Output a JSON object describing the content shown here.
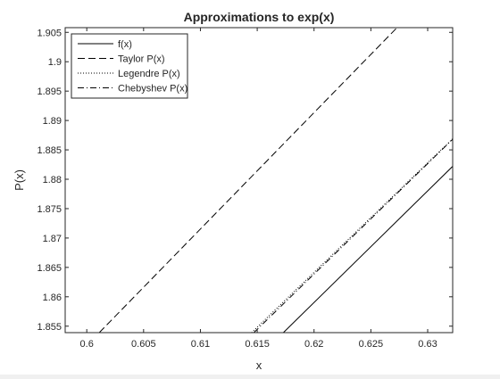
{
  "chart_data": {
    "type": "line",
    "title": "Approximations to exp(x)",
    "xlabel": "x",
    "ylabel": "P(x)",
    "xlim": [
      0.5981,
      0.6322
    ],
    "ylim": [
      1.8539,
      1.9058
    ],
    "xticks": [
      0.6,
      0.605,
      0.61,
      0.615,
      0.62,
      0.625,
      0.63
    ],
    "xtick_labels": [
      "0.6",
      "0.605",
      "0.61",
      "0.615",
      "0.62",
      "0.625",
      "0.63"
    ],
    "yticks": [
      1.855,
      1.86,
      1.865,
      1.87,
      1.875,
      1.88,
      1.885,
      1.89,
      1.895,
      1.9,
      1.905
    ],
    "ytick_labels": [
      "1.855",
      "1.86",
      "1.865",
      "1.87",
      "1.875",
      "1.88",
      "1.885",
      "1.89",
      "1.895",
      "1.9",
      "1.905"
    ],
    "grid": false,
    "legend_position": "top-left",
    "series": [
      {
        "name": "f(x)",
        "style": "solid",
        "color": "#000000",
        "x": [
          0.6173,
          0.6322
        ],
        "y": [
          1.8539,
          1.8822
        ]
      },
      {
        "name": "Taylor P(x)",
        "style": "dashed",
        "color": "#000000",
        "x": [
          0.6011,
          0.6273
        ],
        "y": [
          1.8539,
          1.9058
        ]
      },
      {
        "name": "Legendre P(x)",
        "style": "dotted",
        "color": "#000000",
        "x": [
          0.6145,
          0.6322
        ],
        "y": [
          1.8539,
          1.8869
        ]
      },
      {
        "name": "Chebyshev P(x)",
        "style": "dashdot",
        "color": "#000000",
        "x": [
          0.6147,
          0.6322
        ],
        "y": [
          1.8539,
          1.8868
        ]
      }
    ]
  }
}
